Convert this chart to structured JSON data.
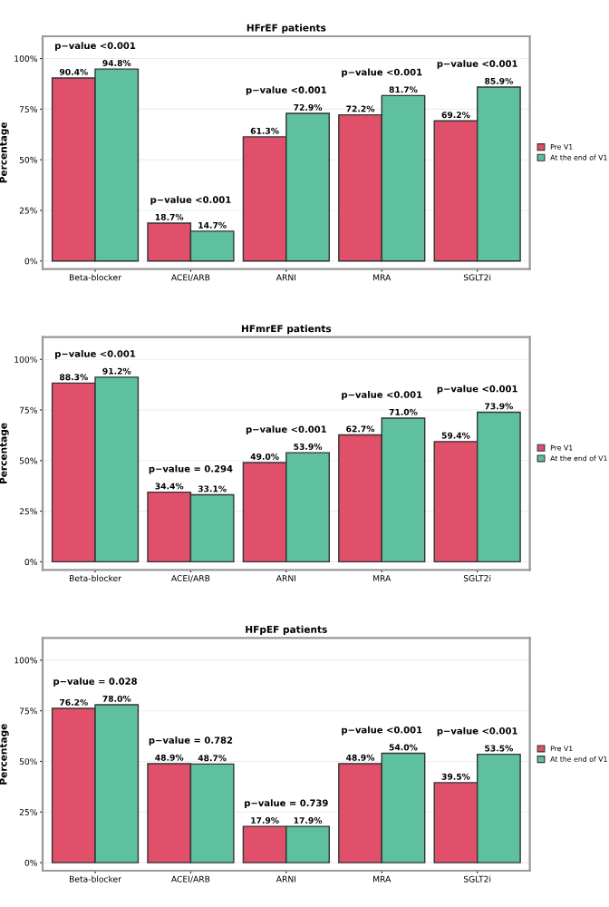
{
  "chart_data": [
    {
      "type": "bar",
      "title": "HFrEF patients",
      "ylabel": "Percentage",
      "categories": [
        "Beta-blocker",
        "ACEI/ARB",
        "ARNI",
        "MRA",
        "SGLT2i"
      ],
      "series": [
        {
          "name": "Pre V1",
          "color": "#e0506a",
          "values": [
            90.4,
            18.7,
            61.3,
            72.2,
            69.2
          ],
          "value_labels": [
            "90.4%",
            "18.7%",
            "61.3%",
            "72.2%",
            "69.2%"
          ]
        },
        {
          "name": "At the end of V1",
          "color": "#5fc0a0",
          "values": [
            94.8,
            14.7,
            72.9,
            81.7,
            85.9
          ],
          "value_labels": [
            "94.8%",
            "14.7%",
            "72.9%",
            "81.7%",
            "85.9%"
          ]
        }
      ],
      "ylim": [
        -4,
        111
      ],
      "yticks": [
        {
          "value": 0,
          "label": "0%"
        },
        {
          "value": 25,
          "label": "25%"
        },
        {
          "value": 50,
          "label": "50%"
        },
        {
          "value": 75,
          "label": "75%"
        },
        {
          "value": 100,
          "label": "100%"
        }
      ],
      "grid": "y",
      "legend": "right",
      "annotations": [
        "p−value <0.001",
        "p−value <0.001",
        "p−value <0.001",
        "p−value <0.001",
        "p−value <0.001"
      ]
    },
    {
      "type": "bar",
      "title": "HFmrEF patients",
      "ylabel": "Percentage",
      "categories": [
        "Beta-blocker",
        "ACEI/ARB",
        "ARNI",
        "MRA",
        "SGLT2i"
      ],
      "series": [
        {
          "name": "Pre V1",
          "color": "#e0506a",
          "values": [
            88.3,
            34.4,
            49.0,
            62.7,
            59.4
          ],
          "value_labels": [
            "88.3%",
            "34.4%",
            "49.0%",
            "62.7%",
            "59.4%"
          ]
        },
        {
          "name": "At the end of V1",
          "color": "#5fc0a0",
          "values": [
            91.2,
            33.1,
            53.9,
            71.0,
            73.9
          ],
          "value_labels": [
            "91.2%",
            "33.1%",
            "53.9%",
            "71.0%",
            "73.9%"
          ]
        }
      ],
      "ylim": [
        -4,
        111
      ],
      "yticks": [
        {
          "value": 0,
          "label": "0%"
        },
        {
          "value": 25,
          "label": "25%"
        },
        {
          "value": 50,
          "label": "50%"
        },
        {
          "value": 75,
          "label": "75%"
        },
        {
          "value": 100,
          "label": "100%"
        }
      ],
      "grid": "y",
      "legend": "right",
      "annotations": [
        "p−value <0.001",
        "p−value = 0.294",
        "p−value <0.001",
        "p−value <0.001",
        "p−value <0.001"
      ]
    },
    {
      "type": "bar",
      "title": "HFpEF patients",
      "ylabel": "Percentage",
      "categories": [
        "Beta-blocker",
        "ACEI/ARB",
        "ARNI",
        "MRA",
        "SGLT2i"
      ],
      "series": [
        {
          "name": "Pre V1",
          "color": "#e0506a",
          "values": [
            76.2,
            48.9,
            17.9,
            48.9,
            39.5
          ],
          "value_labels": [
            "76.2%",
            "48.9%",
            "17.9%",
            "48.9%",
            "39.5%"
          ]
        },
        {
          "name": "At the end of V1",
          "color": "#5fc0a0",
          "values": [
            78.0,
            48.7,
            17.9,
            54.0,
            53.5
          ],
          "value_labels": [
            "78.0%",
            "48.7%",
            "17.9%",
            "54.0%",
            "53.5%"
          ]
        }
      ],
      "ylim": [
        -4,
        111
      ],
      "yticks": [
        {
          "value": 0,
          "label": "0%"
        },
        {
          "value": 25,
          "label": "25%"
        },
        {
          "value": 50,
          "label": "50%"
        },
        {
          "value": 75,
          "label": "75%"
        },
        {
          "value": 100,
          "label": "100%"
        }
      ],
      "grid": "y",
      "legend": "right",
      "annotations": [
        "p−value = 0.028",
        "p−value = 0.782",
        "p−value = 0.739",
        "p−value <0.001",
        "p−value <0.001"
      ]
    }
  ]
}
